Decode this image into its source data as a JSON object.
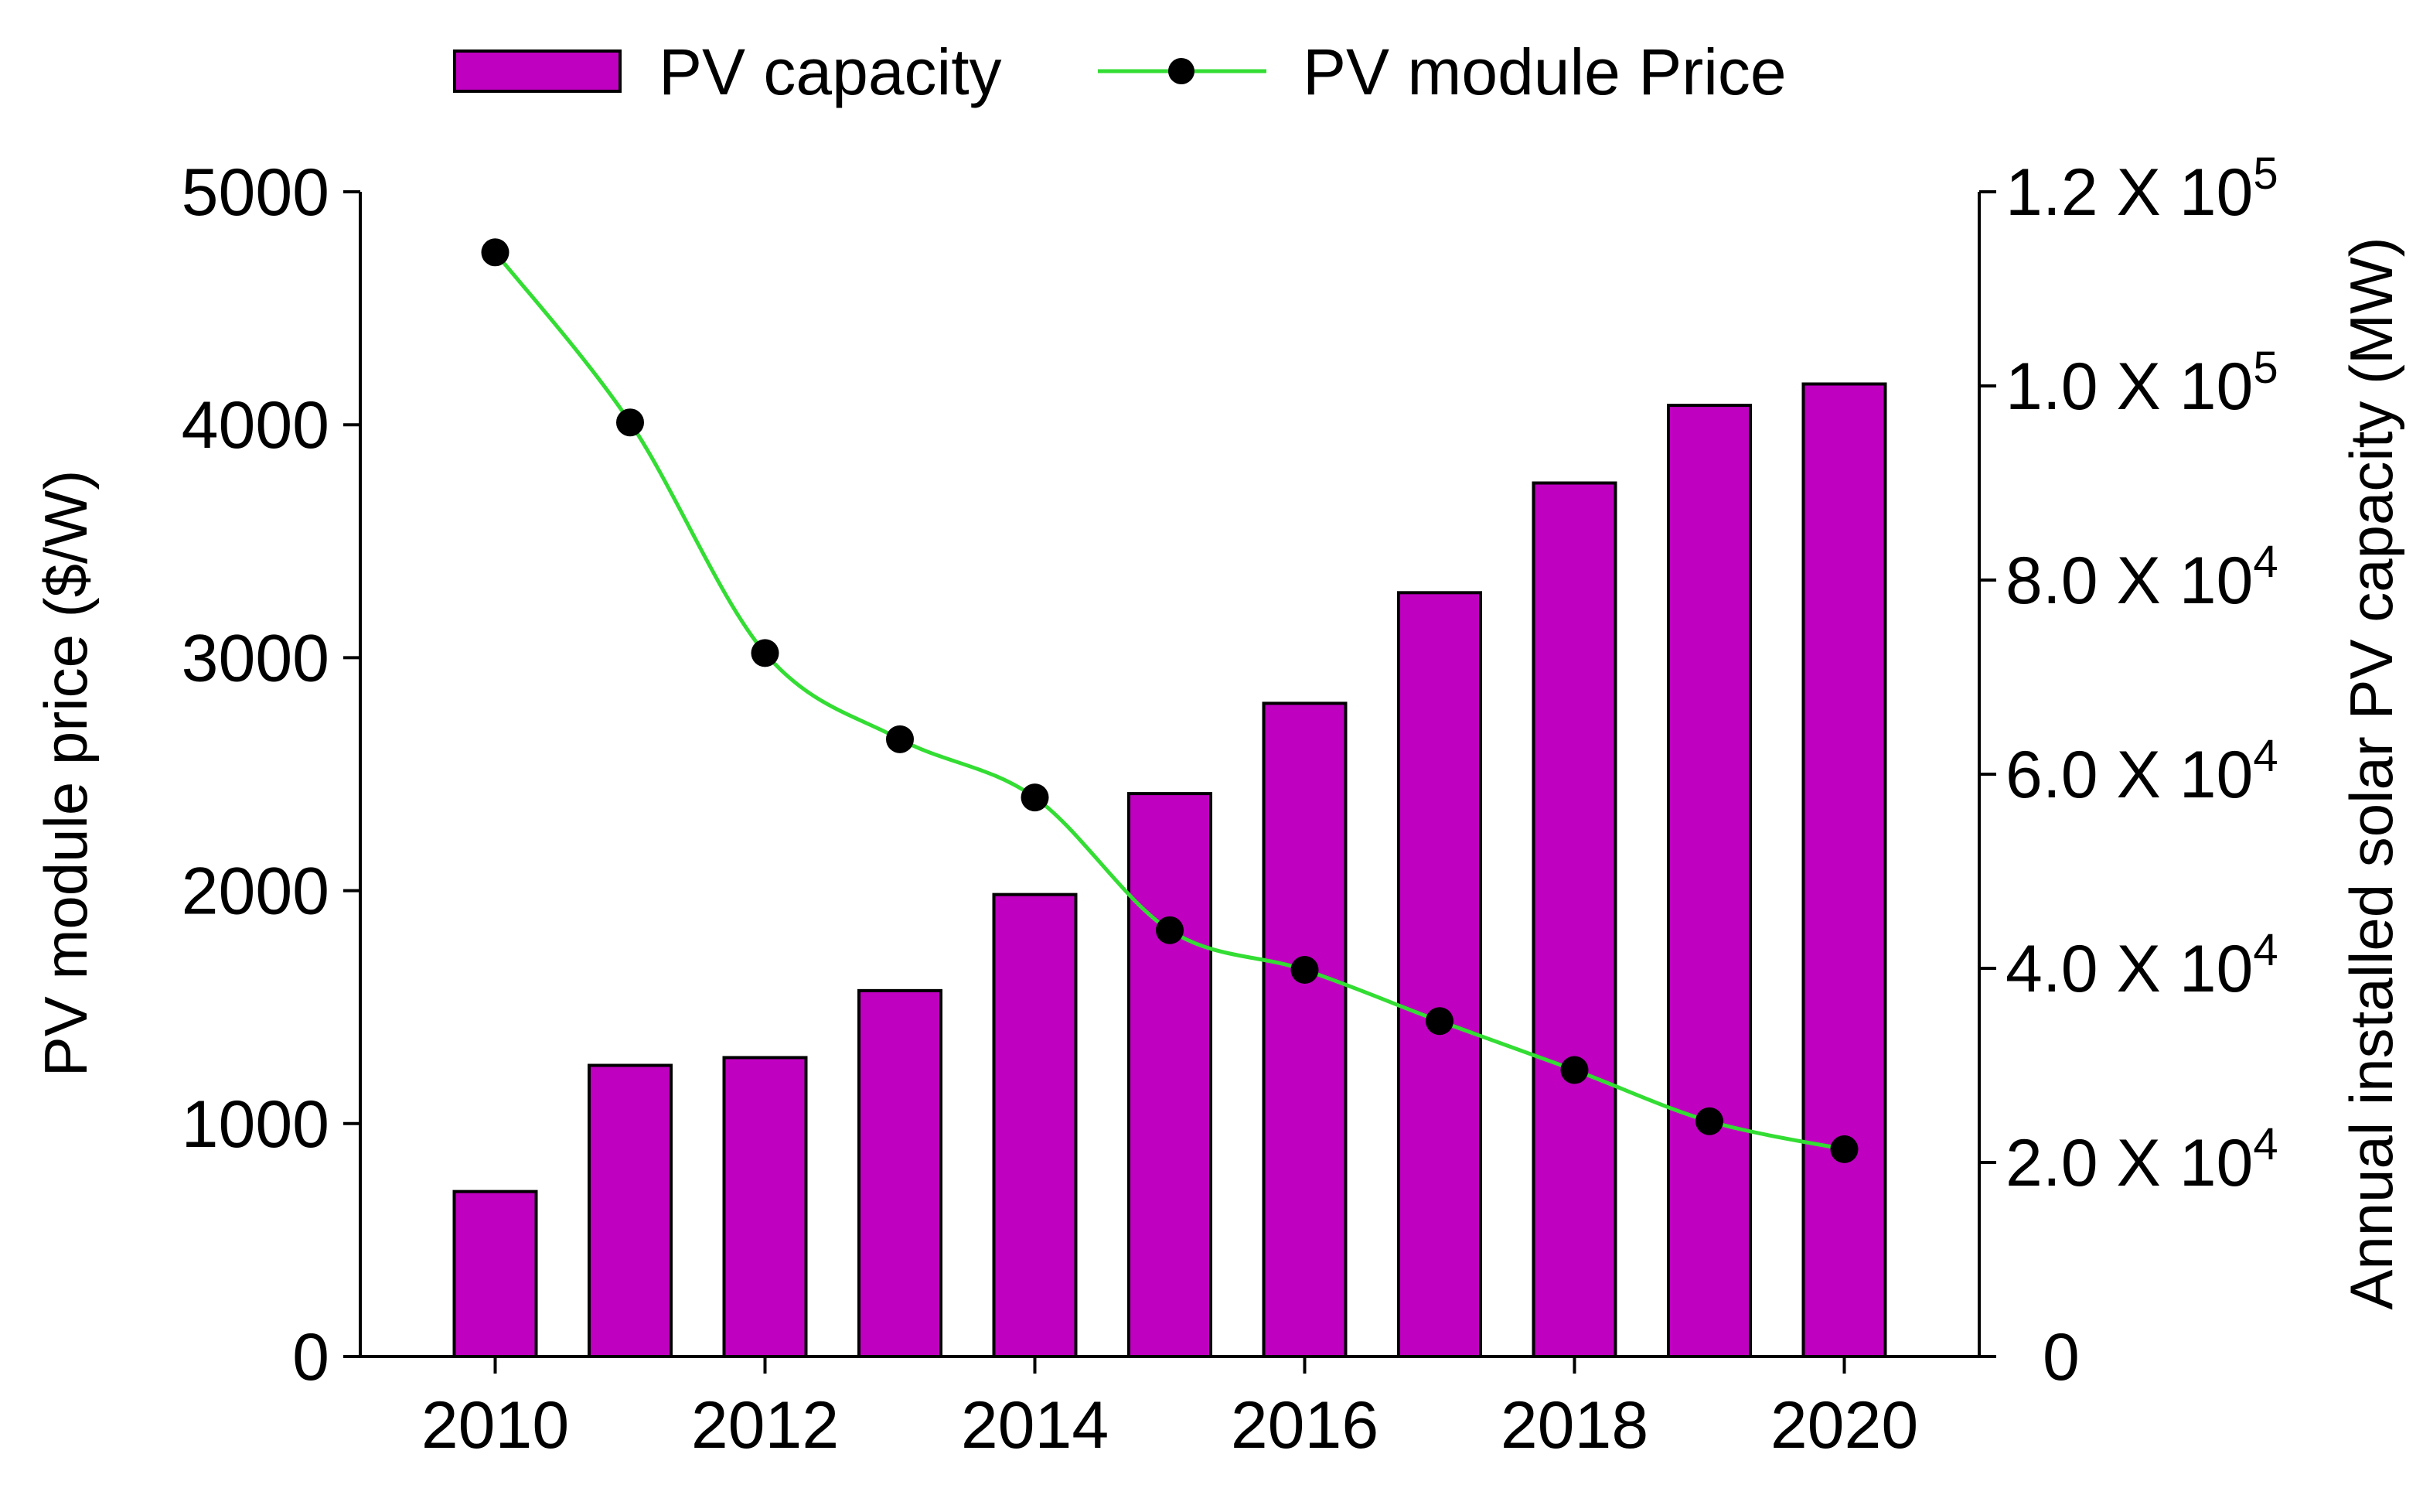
{
  "chart_data": {
    "type": "bar+line",
    "legend": {
      "placement": "top-center",
      "entries": [
        {
          "label": "PV capacity",
          "kind": "bar"
        },
        {
          "label": "PV module Price",
          "kind": "line-marker"
        }
      ]
    },
    "x": [
      2010,
      2011,
      2012,
      2013,
      2014,
      2015,
      2016,
      2017,
      2018,
      2019,
      2020
    ],
    "xlim": [
      2009,
      2021
    ],
    "x_ticks": [
      "2010",
      "2012",
      "2014",
      "2016",
      "2018",
      "2020"
    ],
    "ylabel_left": "PV module price ($/W)",
    "ylim_left": [
      0,
      5000
    ],
    "y_ticks_left": [
      "0",
      "1000",
      "2000",
      "3000",
      "4000",
      "5000"
    ],
    "ylabel_right": "Annual installed solar PV capacity (MW)",
    "ylim_right": [
      0,
      120000
    ],
    "y_ticks_right": [
      {
        "mantissa": "0",
        "exp": ""
      },
      {
        "mantissa": "2.0 X 10",
        "exp": "4"
      },
      {
        "mantissa": "4.0 X 10",
        "exp": "4"
      },
      {
        "mantissa": "6.0 X 10",
        "exp": "4"
      },
      {
        "mantissa": "8.0 X 10",
        "exp": "4"
      },
      {
        "mantissa": "1.0 X 10",
        "exp": "5"
      },
      {
        "mantissa": "1.2 X 10",
        "exp": "5"
      }
    ],
    "series": [
      {
        "name": "PV capacity",
        "axis": "right",
        "type": "bar",
        "values": [
          17000,
          30000,
          30800,
          37700,
          47600,
          58000,
          67300,
          78700,
          90000,
          98000,
          100200
        ]
      },
      {
        "name": "PV module Price",
        "axis": "left",
        "type": "line",
        "values": [
          4740,
          4010,
          3020,
          2650,
          2400,
          1830,
          1660,
          1440,
          1230,
          1010,
          890
        ]
      }
    ],
    "colors": {
      "bar_fill": "#c000c0",
      "line": "#33dd33",
      "marker": "#000000"
    }
  }
}
